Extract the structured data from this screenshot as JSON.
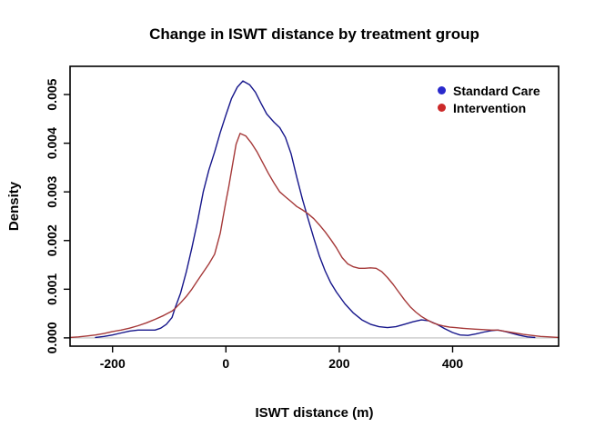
{
  "chart_data": {
    "type": "line",
    "title": "Change in ISWT distance by treatment group",
    "xlabel": "ISWT distance (m)",
    "ylabel": "Density",
    "xlim": [
      -275,
      587
    ],
    "ylim": [
      -0.00017,
      0.00558
    ],
    "x_ticks": [
      -200,
      0,
      200,
      400
    ],
    "x_tick_labels": [
      "-200",
      "0",
      "200",
      "400"
    ],
    "y_ticks": [
      0,
      0.001,
      0.002,
      0.003,
      0.004,
      0.005
    ],
    "y_tick_labels": [
      "0.000",
      "0.001",
      "0.002",
      "0.003",
      "0.004",
      "0.005"
    ],
    "grid": false,
    "legend_position": "top-right",
    "zero_line_color": "#C9C9C9",
    "axis_color": "#000000",
    "series": [
      {
        "name": "Standard Care",
        "line_color": "#16168B",
        "dot_color": "#2929CC",
        "points": [
          [
            -230,
            1e-05
          ],
          [
            -215,
            3e-05
          ],
          [
            -200,
            6e-05
          ],
          [
            -185,
            0.0001
          ],
          [
            -170,
            0.00014
          ],
          [
            -155,
            0.00016
          ],
          [
            -140,
            0.00016
          ],
          [
            -125,
            0.00016
          ],
          [
            -115,
            0.0002
          ],
          [
            -105,
            0.00028
          ],
          [
            -95,
            0.00042
          ],
          [
            -90,
            0.0006
          ],
          [
            -80,
            0.00092
          ],
          [
            -70,
            0.00135
          ],
          [
            -60,
            0.00185
          ],
          [
            -50,
            0.0024
          ],
          [
            -40,
            0.003
          ],
          [
            -30,
            0.00345
          ],
          [
            -20,
            0.00382
          ],
          [
            -10,
            0.00422
          ],
          [
            0,
            0.00458
          ],
          [
            10,
            0.00492
          ],
          [
            20,
            0.00515
          ],
          [
            30,
            0.00528
          ],
          [
            42,
            0.0052
          ],
          [
            52,
            0.00505
          ],
          [
            62,
            0.00482
          ],
          [
            72,
            0.0046
          ],
          [
            85,
            0.00443
          ],
          [
            95,
            0.00432
          ],
          [
            105,
            0.00412
          ],
          [
            115,
            0.00378
          ],
          [
            125,
            0.0033
          ],
          [
            135,
            0.00285
          ],
          [
            145,
            0.00245
          ],
          [
            155,
            0.00205
          ],
          [
            165,
            0.00168
          ],
          [
            175,
            0.00138
          ],
          [
            185,
            0.00113
          ],
          [
            195,
            0.00094
          ],
          [
            210,
            0.0007
          ],
          [
            225,
            0.00051
          ],
          [
            240,
            0.00037
          ],
          [
            255,
            0.00028
          ],
          [
            270,
            0.00023
          ],
          [
            285,
            0.00021
          ],
          [
            300,
            0.00023
          ],
          [
            315,
            0.00028
          ],
          [
            330,
            0.00033
          ],
          [
            345,
            0.00037
          ],
          [
            358,
            0.00035
          ],
          [
            372,
            0.00028
          ],
          [
            386,
            0.00019
          ],
          [
            400,
            0.00011
          ],
          [
            413,
            6e-05
          ],
          [
            427,
            5e-05
          ],
          [
            441,
            8e-05
          ],
          [
            455,
            0.00012
          ],
          [
            468,
            0.00015
          ],
          [
            480,
            0.00016
          ],
          [
            493,
            0.00013
          ],
          [
            506,
            9e-05
          ],
          [
            519,
            5e-05
          ],
          [
            532,
            2e-05
          ],
          [
            545,
            1e-05
          ]
        ]
      },
      {
        "name": "Intervention",
        "line_color": "#A53838",
        "dot_color": "#CC2929",
        "points": [
          [
            -275,
            1e-05
          ],
          [
            -260,
            2e-05
          ],
          [
            -245,
            4e-05
          ],
          [
            -230,
            6e-05
          ],
          [
            -215,
            9e-05
          ],
          [
            -200,
            0.00013
          ],
          [
            -185,
            0.00016
          ],
          [
            -170,
            0.0002
          ],
          [
            -155,
            0.00025
          ],
          [
            -140,
            0.00031
          ],
          [
            -125,
            0.00038
          ],
          [
            -110,
            0.00046
          ],
          [
            -95,
            0.00055
          ],
          [
            -90,
            0.0006
          ],
          [
            -80,
            0.00072
          ],
          [
            -70,
            0.00085
          ],
          [
            -60,
            0.001
          ],
          [
            -50,
            0.00118
          ],
          [
            -40,
            0.00135
          ],
          [
            -30,
            0.00152
          ],
          [
            -20,
            0.00172
          ],
          [
            -10,
            0.00215
          ],
          [
            -5,
            0.00248
          ],
          [
            0,
            0.0028
          ],
          [
            5,
            0.0031
          ],
          [
            12,
            0.00358
          ],
          [
            18,
            0.00398
          ],
          [
            25,
            0.0042
          ],
          [
            35,
            0.00415
          ],
          [
            45,
            0.004
          ],
          [
            55,
            0.00382
          ],
          [
            65,
            0.0036
          ],
          [
            75,
            0.00338
          ],
          [
            85,
            0.00318
          ],
          [
            95,
            0.003
          ],
          [
            105,
            0.0029
          ],
          [
            115,
            0.0028
          ],
          [
            125,
            0.0027
          ],
          [
            135,
            0.00263
          ],
          [
            145,
            0.00255
          ],
          [
            155,
            0.00245
          ],
          [
            165,
            0.00232
          ],
          [
            175,
            0.00218
          ],
          [
            185,
            0.00202
          ],
          [
            195,
            0.00185
          ],
          [
            205,
            0.00165
          ],
          [
            215,
            0.00152
          ],
          [
            225,
            0.00146
          ],
          [
            235,
            0.00143
          ],
          [
            245,
            0.00143
          ],
          [
            255,
            0.00144
          ],
          [
            265,
            0.00143
          ],
          [
            275,
            0.00136
          ],
          [
            285,
            0.00124
          ],
          [
            295,
            0.0011
          ],
          [
            305,
            0.00094
          ],
          [
            315,
            0.00078
          ],
          [
            325,
            0.00064
          ],
          [
            335,
            0.00053
          ],
          [
            345,
            0.00044
          ],
          [
            355,
            0.00037
          ],
          [
            365,
            0.00031
          ],
          [
            375,
            0.00027
          ],
          [
            385,
            0.00024
          ],
          [
            395,
            0.00022
          ],
          [
            405,
            0.00021
          ],
          [
            415,
            0.0002
          ],
          [
            425,
            0.00019
          ],
          [
            440,
            0.00018
          ],
          [
            455,
            0.00017
          ],
          [
            468,
            0.00016
          ],
          [
            480,
            0.00016
          ],
          [
            495,
            0.00013
          ],
          [
            510,
            0.0001
          ],
          [
            525,
            7e-05
          ],
          [
            540,
            5e-05
          ],
          [
            555,
            3e-05
          ],
          [
            570,
            2e-05
          ],
          [
            587,
            1e-05
          ]
        ]
      }
    ]
  }
}
